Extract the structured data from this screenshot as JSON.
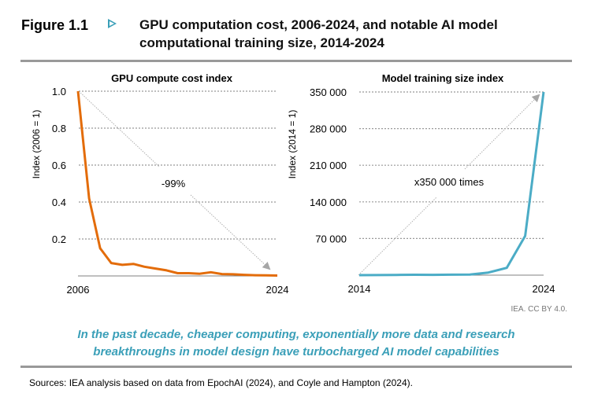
{
  "figure": {
    "label": "Figure 1.1",
    "title_line1": "GPU computation cost, 2006-2024, and notable AI model",
    "title_line2": "computational training size, 2014-2024",
    "accent_color": "#3a9fb8"
  },
  "credit": "IEA. CC BY 4.0.",
  "takeaway_line1": "In the past decade, cheaper computing, exponentially more data and research",
  "takeaway_line2": "breakthroughs in model design have turbocharged AI model capabilities",
  "sources": "Sources: IEA analysis based on data from EpochAI (2024), and Coyle and Hampton (2024).",
  "chart_data": [
    {
      "type": "line",
      "title": "GPU compute cost index",
      "xlabel": "",
      "ylabel": "Index (2006 = 1)",
      "x": [
        2006,
        2007,
        2008,
        2009,
        2010,
        2011,
        2012,
        2013,
        2014,
        2015,
        2016,
        2017,
        2018,
        2019,
        2020,
        2021,
        2022,
        2023,
        2024
      ],
      "values": [
        1.0,
        0.42,
        0.15,
        0.07,
        0.06,
        0.065,
        0.05,
        0.04,
        0.03,
        0.015,
        0.015,
        0.012,
        0.02,
        0.01,
        0.009,
        0.006,
        0.004,
        0.003,
        0.002
      ],
      "xlim": [
        2006,
        2024
      ],
      "ylim": [
        0,
        1.0
      ],
      "y_ticks": [
        0.2,
        0.4,
        0.6,
        0.8,
        1.0
      ],
      "y_tick_labels": [
        "0.2",
        "0.4",
        "0.6",
        "0.8",
        "1.0"
      ],
      "x_tick_labels": [
        "2006",
        "2024"
      ],
      "grid": true,
      "color": "#e36c0a",
      "annotation": "-99%"
    },
    {
      "type": "line",
      "title": "Model training size index",
      "xlabel": "",
      "ylabel": "Index (2014 = 1)",
      "x": [
        2014,
        2015,
        2016,
        2017,
        2018,
        2019,
        2020,
        2021,
        2022,
        2023,
        2024
      ],
      "values": [
        1,
        200,
        400,
        800,
        600,
        900,
        1000,
        5000,
        14000,
        75000,
        350000
      ],
      "xlim": [
        2014,
        2024
      ],
      "ylim": [
        0,
        350000
      ],
      "y_ticks": [
        70000,
        140000,
        210000,
        280000,
        350000
      ],
      "y_tick_labels": [
        "70 000",
        "140 000",
        "210 000",
        "280 000",
        "350 000"
      ],
      "x_tick_labels": [
        "2014",
        "2024"
      ],
      "grid": true,
      "color": "#4bacc6",
      "annotation": "x350 000 times"
    }
  ]
}
